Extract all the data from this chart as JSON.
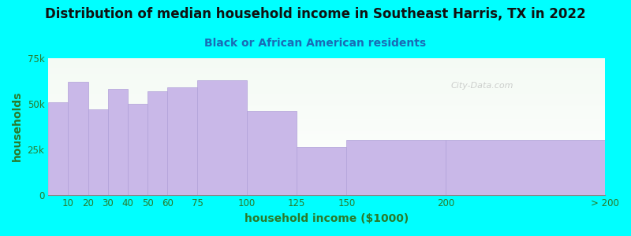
{
  "title": "Distribution of median household income in Southeast Harris, TX in 2022",
  "subtitle": "Black or African American residents",
  "xlabel": "household income ($1000)",
  "ylabel": "households",
  "background_color": "#00FFFF",
  "bar_color": "#c9b8e8",
  "bar_edge_color": "#b0a0d8",
  "categories": [
    "10",
    "20",
    "30",
    "40",
    "50",
    "60",
    "75",
    "100",
    "125",
    "150",
    "200",
    "> 200"
  ],
  "values": [
    51000,
    62000,
    47000,
    58000,
    50000,
    57000,
    59000,
    63000,
    46000,
    26000,
    30000,
    30000
  ],
  "left_edges": [
    0,
    10,
    20,
    30,
    40,
    50,
    60,
    75,
    100,
    125,
    150,
    200
  ],
  "widths": [
    10,
    10,
    10,
    10,
    10,
    10,
    15,
    25,
    25,
    25,
    50,
    80
  ],
  "ylim": [
    0,
    75000
  ],
  "yticks": [
    0,
    25000,
    50000,
    75000
  ],
  "ytick_labels": [
    "0",
    "25k",
    "50k",
    "75k"
  ],
  "xtick_positions": [
    10,
    20,
    30,
    40,
    50,
    60,
    75,
    100,
    125,
    150,
    200,
    280
  ],
  "xtick_labels": [
    "10",
    "20",
    "30",
    "40",
    "50",
    "60",
    "75",
    "100",
    "125",
    "150",
    "200",
    "> 200"
  ],
  "title_fontsize": 12,
  "subtitle_fontsize": 10,
  "axis_label_fontsize": 10,
  "tick_fontsize": 8.5,
  "title_color": "#111111",
  "subtitle_color": "#1a6bb5",
  "ylabel_color": "#2a7a2a",
  "xlabel_color": "#2a7a2a",
  "tick_color": "#2a7a2a",
  "watermark": "City-Data.com"
}
